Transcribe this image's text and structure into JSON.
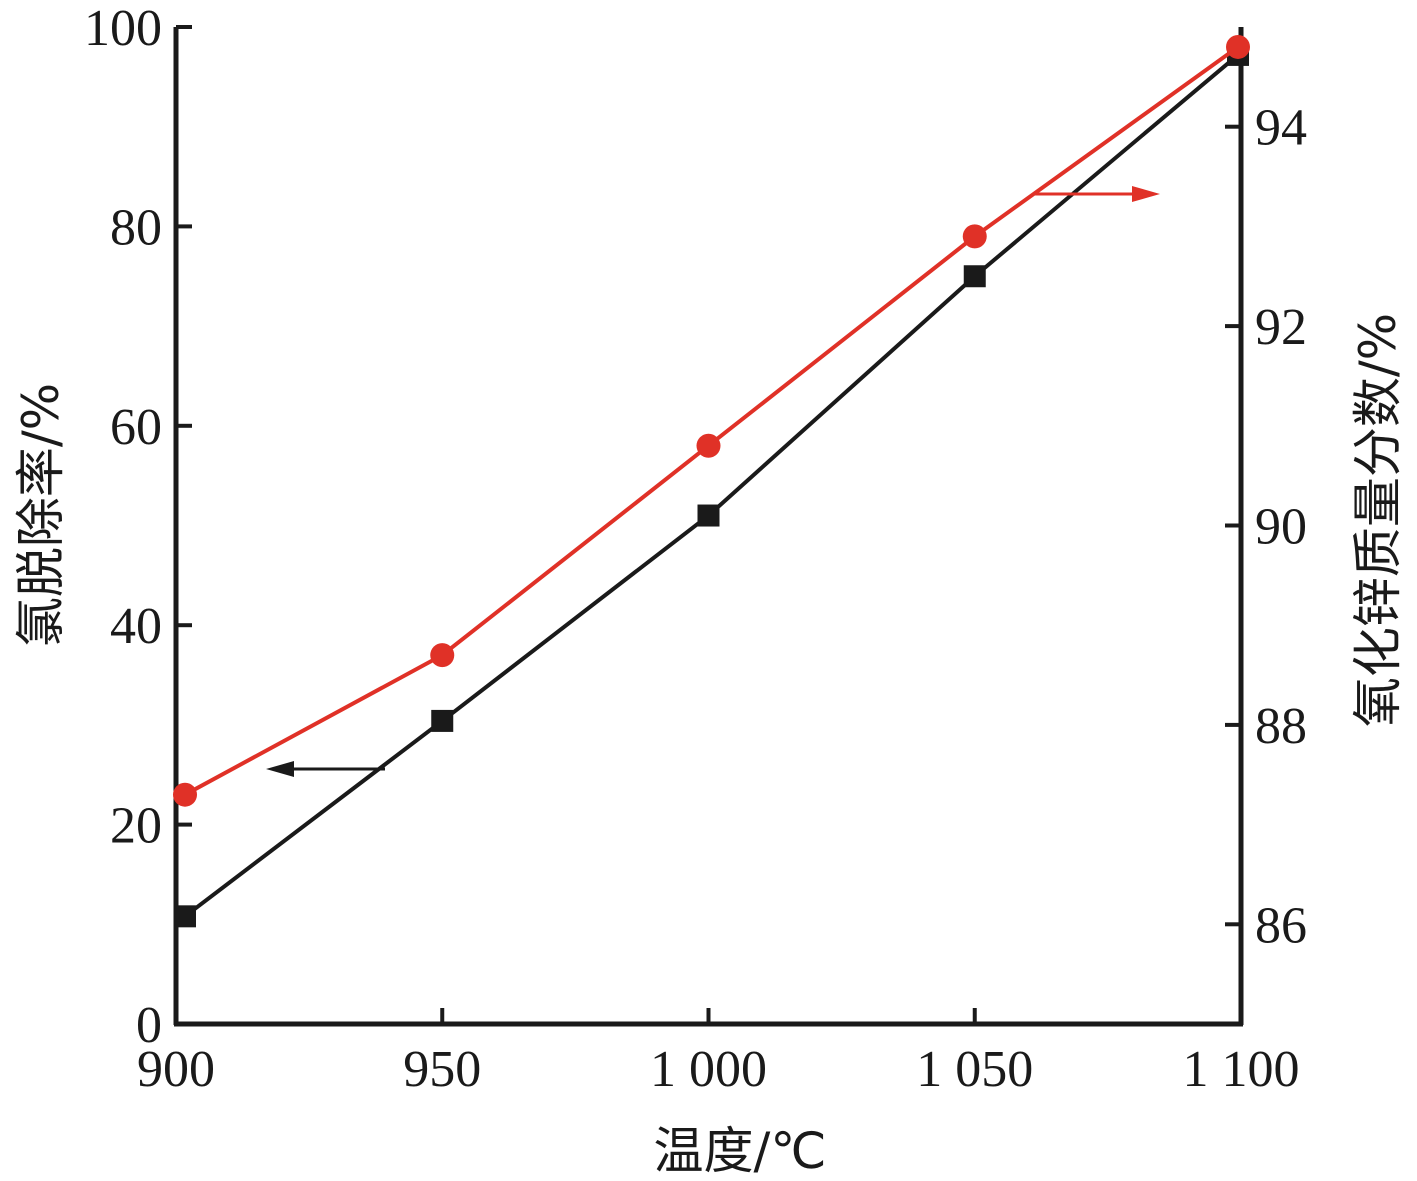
{
  "chart_data": {
    "type": "line",
    "xlabel": "温度/℃",
    "ylabel_left": "氯脱除率/%",
    "ylabel_right": "氧化锌质量分数/%",
    "x": [
      900,
      950,
      1000,
      1050,
      1100
    ],
    "x_tick_labels": [
      "900",
      "950",
      "1 000",
      "1 050",
      "1 100"
    ],
    "xlim": [
      900,
      1100
    ],
    "y_left_lim": [
      0,
      100
    ],
    "y_left_ticks": [
      0,
      20,
      40,
      60,
      80,
      100
    ],
    "y_left_tick_labels": [
      "0",
      "20",
      "40",
      "60",
      "80",
      "100"
    ],
    "y_right_lim": [
      85,
      95
    ],
    "y_right_ticks": [
      86,
      88,
      90,
      92,
      94
    ],
    "y_right_tick_labels": [
      "86",
      "88",
      "90",
      "92",
      "94"
    ],
    "series": [
      {
        "axis": "left",
        "marker": "square",
        "color": "#1a1a1a",
        "values": [
          10.8,
          30.4,
          51.0,
          75.0,
          97.2
        ],
        "indicator_arrow": "left"
      },
      {
        "axis": "right",
        "marker": "circle",
        "color": "#e03127",
        "values": [
          87.3,
          88.7,
          90.8,
          92.9,
          94.8
        ],
        "indicator_arrow": "right"
      }
    ],
    "grid": false,
    "legend": "none"
  }
}
